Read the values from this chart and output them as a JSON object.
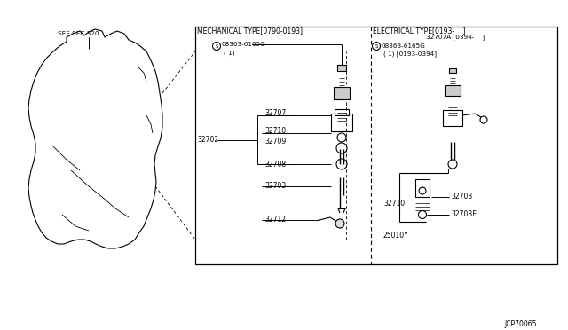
{
  "bg_color": "#ffffff",
  "border_color": "#000000",
  "line_color": "#000000",
  "text_color": "#000000",
  "diagram_ref": "JCP70065",
  "sec_label": "SEE SEC.320",
  "mech_type_label": "MECHANICAL TYPE[0790-0193]",
  "elec_type_label": "ELECTRICAL TYPE[0193-    ]",
  "mech_screw_label": "08363-6165G",
  "mech_screw_sub": "( 1)",
  "elec_32707A": "32707A [0394-    ]",
  "elec_screw_label": "08363-6165G",
  "elec_screw_sub": "( 1) [0193-0394]",
  "fig_size": [
    6.4,
    3.72
  ],
  "dpi": 100
}
